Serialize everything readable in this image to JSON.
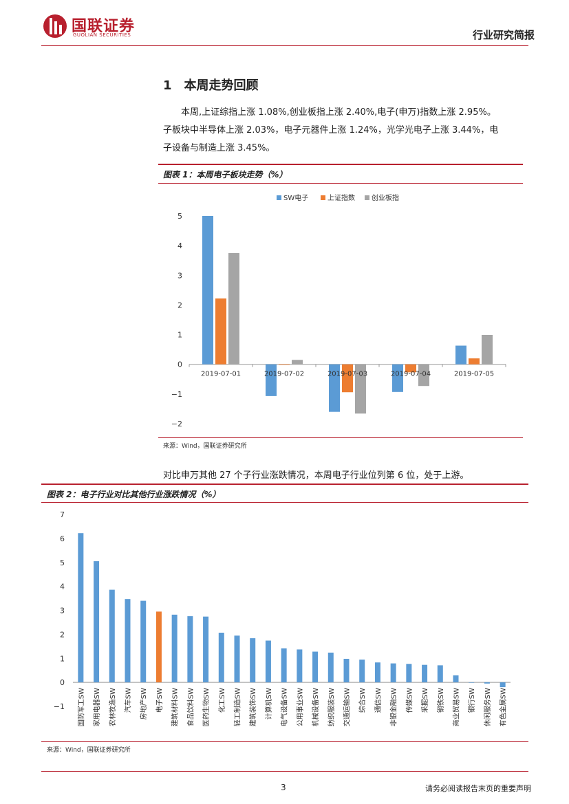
{
  "header": {
    "logo_cn": "国联证券",
    "logo_en": "GUOLIAN SECURITIES",
    "report_type": "行业研究简报",
    "colors": {
      "brand": "#b8202e"
    }
  },
  "section": {
    "number": "1",
    "title": "本周走势回顾"
  },
  "paragraph": [
    "本周,上证综指上涨 1.08%,创业板指上涨 2.40%,电子(申万)指数上涨 2.95%。",
    "子板块中半导体上涨 2.03%，电子元器件上涨 1.24%，光学光电子上涨 3.44%，电",
    "子设备与制造上涨 3.45%。"
  ],
  "figure1": {
    "title": "图表 1：本周电子板块走势（%）",
    "source": "来源：Wind，国联证券研究所"
  },
  "mid_text": "对比申万其他 27 个子行业涨跌情况，本周电子行业位列第 6 位，处于上游。",
  "figure2": {
    "title": "图表 2：电子行业对比其他行业涨跌情况（%）",
    "source": "来源：Wind，国联证券研究所"
  },
  "chart_data": [
    {
      "type": "bar",
      "categories": [
        "2019-07-01",
        "2019-07-02",
        "2019-07-03",
        "2019-07-04",
        "2019-07-05"
      ],
      "series": [
        {
          "name": "SW电子",
          "color": "#5b9bd5",
          "values": [
            5.0,
            -1.07,
            -1.6,
            -0.93,
            0.63
          ]
        },
        {
          "name": "上证指数",
          "color": "#ed7d31",
          "values": [
            2.22,
            -0.02,
            -0.94,
            -0.27,
            0.2
          ]
        },
        {
          "name": "创业板指",
          "color": "#a5a5a5",
          "values": [
            3.75,
            0.15,
            -1.66,
            -0.73,
            0.99
          ]
        }
      ],
      "ylim": [
        -2,
        5
      ],
      "yticks": [
        "5",
        "4",
        "3",
        "2",
        "1",
        "0",
        "−1",
        "−2"
      ],
      "legend": "top",
      "grid": false
    },
    {
      "type": "bar",
      "categories": [
        "国防军工SW",
        "家用电器SW",
        "农林牧渔SW",
        "汽车SW",
        "房地产SW",
        "电子SW",
        "建筑材料SW",
        "食品饮料SW",
        "医药生物SW",
        "化工SW",
        "轻工制造SW",
        "建筑装饰SW",
        "计算机SW",
        "电气设备SW",
        "公用事业SW",
        "机械设备SW",
        "纺织服装SW",
        "交通运输SW",
        "综合SW",
        "通信SW",
        "非银金融SW",
        "传媒SW",
        "采掘SW",
        "钢铁SW",
        "商业贸易SW",
        "银行SW",
        "休闲服务SW",
        "有色金属SW"
      ],
      "values": [
        6.22,
        5.05,
        3.86,
        3.47,
        3.4,
        2.95,
        2.82,
        2.76,
        2.74,
        2.07,
        1.95,
        1.84,
        1.74,
        1.42,
        1.37,
        1.28,
        1.24,
        0.98,
        0.95,
        0.83,
        0.79,
        0.77,
        0.73,
        0.71,
        0.29,
        0.0,
        -0.05,
        -0.2
      ],
      "highlight_index": 5,
      "colors": {
        "default": "#5b9bd5",
        "highlight": "#ed7d31"
      },
      "ylim": [
        -1,
        7
      ],
      "yticks": [
        "7",
        "6",
        "5",
        "4",
        "3",
        "2",
        "1",
        "0",
        "−1"
      ],
      "grid": false
    }
  ]
}
